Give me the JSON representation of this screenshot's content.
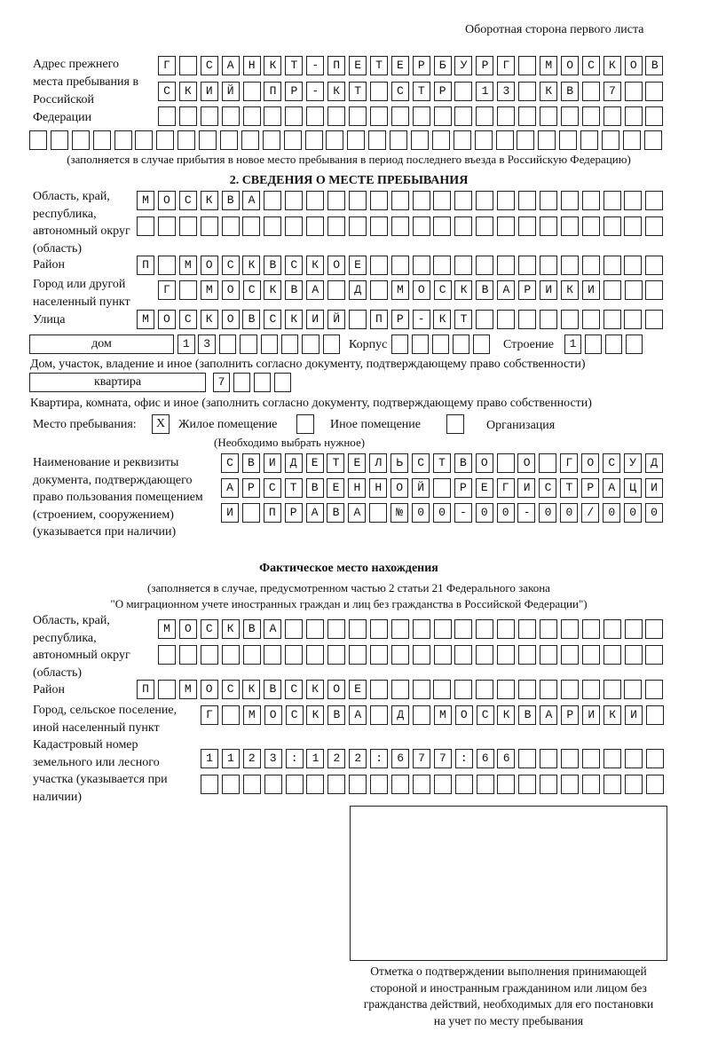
{
  "header": {
    "page_side": "Оборотная сторона первого листа"
  },
  "previous_address": {
    "label": "Адрес прежнего места пребывания в Российской Федерации",
    "rows": [
      "Г САНКТ-ПЕТЕРБУРГ МОСКОВ",
      "СКИЙ ПР-КТ СТР 13 КВ 7",
      "",
      ""
    ],
    "note": "(заполняется в случае прибытия в новое место пребывания в период последнего въезда в Российскую Федерацию)"
  },
  "section2": {
    "title": "2. СВЕДЕНИЯ О МЕСТЕ ПРЕБЫВАНИЯ",
    "region_label": "Область, край, республика, автономный округ (область)",
    "region_rows": [
      "МОСКВА",
      ""
    ],
    "district_label": "Район",
    "district": "П МОСКВСКОЕ",
    "city_label": "Город или другой населенный пункт",
    "city": "Г МОСКВА Д МОСКВАРИКИ",
    "street_label": "Улица",
    "street": "МОСКОВСКИЙ ПР-КТ",
    "house_type": "дом",
    "house_number": "13",
    "korpus_label": "Корпус",
    "korpus": "",
    "building_label": "Строение",
    "building": "1",
    "house_note": "Дом, участок, владение и иное (заполнить согласно документу, подтверждающему право собственности)",
    "apartment_type": "квартира",
    "apartment_number": "7",
    "apartment_note": "Квартира, комната, офис и иное (заполнить согласно документу, подтверждающему право собственности)",
    "stay_place_label": "Место пребывания:",
    "options": [
      {
        "label": "Жилое помещение",
        "mark": "X"
      },
      {
        "label": "Иное помещение",
        "mark": ""
      },
      {
        "label": "Организация",
        "mark": ""
      }
    ],
    "options_note": "(Необходимо выбрать нужное)",
    "document_label": "Наименование и реквизиты документа, подтверждающего право пользования помещением (строением, сооружением) (указывается при наличии)",
    "document_rows": [
      "СВИДЕТЕЛЬСТВО О ГОСУД",
      "АРСТВЕННОЙ РЕГИСТРАЦИ",
      "И ПРАВА №00-00-00/000"
    ]
  },
  "actual_location": {
    "title": "Фактическое место нахождения",
    "note_line1": "(заполняется в случае, предусмотренном частью 2 статьи 21 Федерального закона",
    "note_line2": "\"О миграционном учете иностранных граждан и лиц без гражданства в Российской Федерации\")",
    "region_label": "Область, край, республика, автономный округ (область)",
    "region_rows": [
      "МОСКВА",
      ""
    ],
    "district_label": "Район",
    "district": "П МОСКВСКОЕ",
    "city_label": "Город, сельское поселение, иной населенный пункт",
    "city": "Г МОСКВА Д МОСКВАРИКИ",
    "cadastral_label": "Кадастровый номер земельного или лесного участка (указывается при наличии)",
    "cadastral_rows": [
      "1123:122:677:66",
      ""
    ]
  },
  "confirmation": {
    "caption": "Отметка о подтверждении выполнения принимающей стороной и иностранным гражданином или лицом без гражданства действий, необходимых для его постановки на учет по месту пребывания"
  }
}
